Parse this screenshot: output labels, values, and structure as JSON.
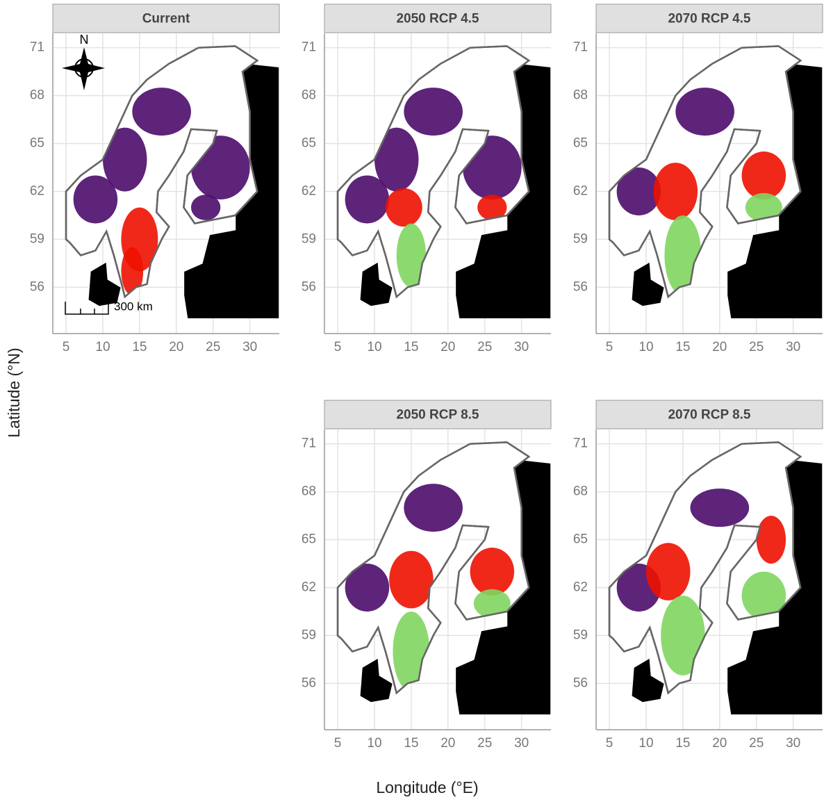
{
  "chart_data": {
    "type": "map",
    "panels": [
      {
        "title": "Current"
      },
      {
        "title": "2050 RCP 4.5"
      },
      {
        "title": "2070 RCP 4.5"
      },
      {
        "title": "2050 RCP 8.5"
      },
      {
        "title": "2070 RCP 8.5"
      }
    ],
    "xlabel": "Longitude (°E)",
    "ylabel": "Latitude (°N)",
    "xlim": [
      3.2,
      34.0
    ],
    "ylim": [
      53.1,
      71.9
    ],
    "xticks": [
      5,
      10,
      15,
      20,
      25,
      30
    ],
    "yticks": [
      56,
      59,
      62,
      65,
      68,
      71
    ],
    "grid": true,
    "scale_bar": "300 km",
    "north_arrow": "N"
  }
}
